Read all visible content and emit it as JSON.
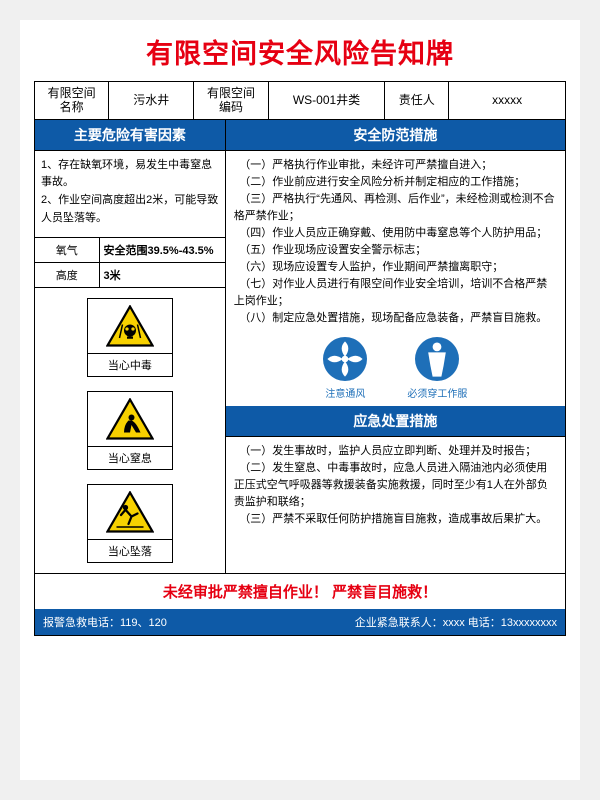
{
  "title": "有限空间安全风险告知牌",
  "header": {
    "name_lbl": "有限空间\n名称",
    "name_val": "污水井",
    "code_lbl": "有限空间\n编码",
    "code_val": "WS-001井类",
    "resp_lbl": "责任人",
    "resp_val": "xxxxx"
  },
  "left": {
    "hazard_head": "主要危险有害因素",
    "hazard_body": "1、存在缺氧环境，易发生中毒窒息事故。\n2、作业空间高度超出2米，可能导致人员坠落等。",
    "oxy_lbl": "氧气",
    "oxy_val": "安全范围39.5%-43.5%",
    "h_lbl": "高度",
    "h_val": "3米",
    "signs": [
      {
        "label": "当心中毒",
        "type": "skull"
      },
      {
        "label": "当心窒息",
        "type": "suffocate"
      },
      {
        "label": "当心坠落",
        "type": "fall"
      }
    ]
  },
  "right": {
    "measure_head": "安全防范措施",
    "measures": "　（一）严格执行作业审批，未经许可严禁擅自进入；\n　（二）作业前应进行安全风险分析并制定相应的工作措施；\n　（三）严格执行“先通风、再检测、后作业”，未经检测或检测不合格严禁作业；\n　（四）作业人员应正确穿戴、使用防中毒窒息等个人防护用品；\n　（五）作业现场应设置安全警示标志；\n　（六）现场应设置专人监护，作业期间严禁擅离职守；\n　（七）对作业人员进行有限空间作业安全培训，培训不合格严禁上岗作业；\n　（八）制定应急处置措施，现场配备应急装备，严禁盲目施救。",
    "blue_icons": [
      {
        "label": "注意通风",
        "type": "fan"
      },
      {
        "label": "必须穿工作服",
        "type": "body"
      }
    ],
    "emerg_head": "应急处置措施",
    "emerg_body": "　（一）发生事故时，监护人员应立即判断、处理并及时报告；\n　（二）发生窒息、中毒事故时，应急人员进入隔油池内必须使用正压式空气呼吸器等救援装备实施救援，同时至少有1人在外部负责监护和联络；\n　（三）严禁不采取任何防护措施盲目施救，造成事故后果扩大。"
  },
  "footer": {
    "warn": "未经审批严禁擅自作业！ 严禁盲目施救！",
    "emerg_phone": "报警急救电话：119、120",
    "contact": "企业紧急联系人：xxxx   电话：13xxxxxxxx"
  },
  "colors": {
    "accent": "#0e5aa7",
    "danger": "#e60012",
    "warn_yellow": "#f7d100"
  }
}
